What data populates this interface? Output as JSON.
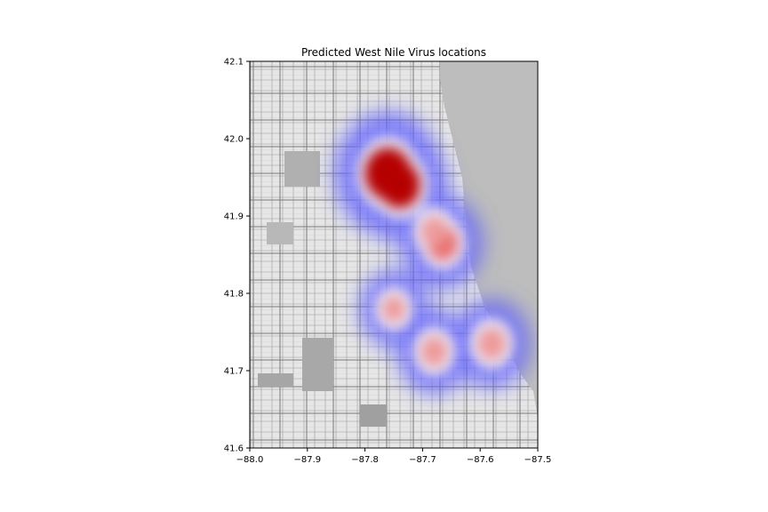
{
  "chart_data": {
    "type": "heatmap",
    "title": "Predicted West Nile Virus locations",
    "xlabel": "",
    "ylabel": "",
    "xlim": [
      -88.0,
      -87.5
    ],
    "ylim": [
      41.6,
      42.1
    ],
    "xticks": [
      -88.0,
      -87.9,
      -87.8,
      -87.7,
      -87.6,
      -87.5
    ],
    "xtick_labels": [
      "−88.0",
      "−87.9",
      "−87.8",
      "−87.7",
      "−87.6",
      "−87.5"
    ],
    "yticks": [
      41.6,
      41.7,
      41.8,
      41.9,
      42.0,
      42.1
    ],
    "ytick_labels": [
      "41.6",
      "41.7",
      "41.8",
      "41.9",
      "42.0",
      "42.1"
    ],
    "grid": false,
    "colormap": "seismic",
    "background": "grayscale street map of Chicago",
    "lake_color": "#bdbdbd",
    "hotspots": [
      {
        "lon": -87.76,
        "lat": 41.955,
        "intensity": 1.0
      },
      {
        "lon": -87.74,
        "lat": 41.94,
        "intensity": 0.85
      },
      {
        "lon": -87.665,
        "lat": 41.865,
        "intensity": 0.55
      },
      {
        "lon": -87.68,
        "lat": 41.88,
        "intensity": 0.45
      },
      {
        "lon": -87.58,
        "lat": 41.735,
        "intensity": 0.5
      },
      {
        "lon": -87.68,
        "lat": 41.725,
        "intensity": 0.45
      },
      {
        "lon": -87.75,
        "lat": 41.78,
        "intensity": 0.35
      }
    ]
  }
}
